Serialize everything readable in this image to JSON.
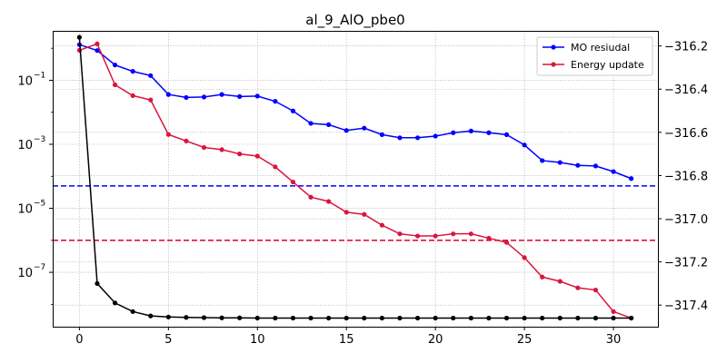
{
  "chart_data": {
    "type": "line",
    "title": "al_9_AlO_pbe0",
    "xlabel": "",
    "ylabel": "",
    "xlim": [
      -1.5,
      32.5
    ],
    "ylim_left_log": [
      2e-09,
      3.5
    ],
    "left_scale": "log",
    "ylim_right": [
      -317.5,
      -316.13
    ],
    "x_ticks": [
      0,
      5,
      10,
      15,
      20,
      25,
      30
    ],
    "y_left_ticks": [
      1e-07,
      1e-05,
      0.001,
      0.1
    ],
    "y_left_tick_labels": [
      "10",
      "10",
      "10",
      "10"
    ],
    "y_left_tick_exponents": [
      "−7",
      "−5",
      "−3",
      "−1"
    ],
    "y_right_ticks": [
      -317.4,
      -317.2,
      -317.0,
      -316.8,
      -316.6,
      -316.4,
      -316.2
    ],
    "y_right_tick_labels": [
      "−317.4",
      "−317.2",
      "−317.0",
      "−316.8",
      "−316.6",
      "−316.4",
      "−316.2"
    ],
    "grid": true,
    "legend_position": "top-right",
    "x": [
      0,
      1,
      2,
      3,
      4,
      5,
      6,
      7,
      8,
      9,
      10,
      11,
      12,
      13,
      14,
      15,
      16,
      17,
      18,
      19,
      20,
      21,
      22,
      23,
      24,
      25,
      26,
      27,
      28,
      29,
      30,
      31
    ],
    "series": [
      {
        "name": "MO resiudal",
        "axis": "left",
        "color": "#0000ff",
        "values": [
          1.3,
          0.85,
          0.3,
          0.19,
          0.14,
          0.036,
          0.029,
          0.03,
          0.036,
          0.031,
          0.032,
          0.022,
          0.011,
          0.0045,
          0.0041,
          0.0027,
          0.0032,
          0.002,
          0.0016,
          0.0016,
          0.0018,
          0.0023,
          0.0026,
          0.0023,
          0.002,
          0.00095,
          0.00031,
          0.00027,
          0.00022,
          0.00021,
          0.00014,
          8.5e-05
        ]
      },
      {
        "name": "Energy update",
        "axis": "right",
        "color": "#dc143c",
        "values": [
          -316.22,
          -316.19,
          -316.38,
          -316.43,
          -316.45,
          -316.61,
          -316.64,
          -316.67,
          -316.68,
          -316.7,
          -316.71,
          -316.76,
          -316.83,
          -316.9,
          -316.92,
          -316.97,
          -316.98,
          -317.03,
          -317.07,
          -317.08,
          -317.08,
          -317.07,
          -317.07,
          -317.09,
          -317.11,
          -317.18,
          -317.27,
          -317.29,
          -317.32,
          -317.33,
          -317.43,
          -317.46
        ]
      },
      {
        "name": "",
        "axis": "right",
        "color": "#000000",
        "values": [
          -316.16,
          -317.3,
          -317.39,
          -317.43,
          -317.45,
          -317.455,
          -317.457,
          -317.458,
          -317.459,
          -317.459,
          -317.46,
          -317.46,
          -317.46,
          -317.46,
          -317.46,
          -317.46,
          -317.46,
          -317.46,
          -317.46,
          -317.46,
          -317.46,
          -317.46,
          -317.46,
          -317.46,
          -317.46,
          -317.46,
          -317.46,
          -317.46,
          -317.46,
          -317.46,
          -317.46,
          -317.46
        ]
      }
    ],
    "threshold_lines": [
      {
        "axis": "left",
        "value": 5e-05,
        "color": "#0000ff",
        "style": "dashed"
      },
      {
        "axis": "left",
        "value": 1e-06,
        "color": "#dc143c",
        "style": "dashed"
      }
    ]
  }
}
